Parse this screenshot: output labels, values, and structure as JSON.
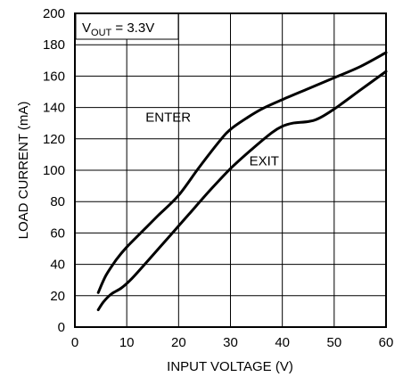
{
  "chart_data": {
    "type": "line",
    "xlabel": "INPUT VOLTAGE (V)",
    "ylabel": "LOAD CURRENT (mA)",
    "xlim": [
      0,
      60
    ],
    "ylim": [
      0,
      200
    ],
    "xticks": [
      "0",
      "10",
      "20",
      "30",
      "40",
      "50",
      "60"
    ],
    "yticks": [
      "0",
      "20",
      "40",
      "60",
      "80",
      "100",
      "120",
      "140",
      "160",
      "180",
      "200"
    ],
    "grid": true,
    "legend_box": {
      "main": "V",
      "sub": "OUT",
      "rest": " = 3.3V"
    },
    "series": [
      {
        "name": "ENTER",
        "label_at": [
          18,
          131
        ],
        "x": [
          4.5,
          6,
          8,
          10,
          13,
          16,
          20,
          24,
          28,
          30,
          33,
          36,
          40,
          45,
          50,
          55,
          60
        ],
        "y": [
          22,
          33,
          43,
          51,
          61,
          71,
          84,
          102,
          119,
          126,
          133,
          139,
          145,
          152,
          159,
          166,
          175
        ]
      },
      {
        "name": "EXIT",
        "label_at": [
          36.5,
          103
        ],
        "x": [
          4.5,
          5.5,
          7,
          9,
          11,
          14,
          18,
          22,
          26,
          30,
          34,
          38,
          40,
          42,
          45,
          47,
          50,
          55,
          60
        ],
        "y": [
          11,
          16,
          21,
          25,
          31,
          42,
          57,
          72,
          87,
          101,
          113,
          124,
          128,
          130,
          131,
          133,
          139,
          151,
          163
        ]
      }
    ]
  }
}
